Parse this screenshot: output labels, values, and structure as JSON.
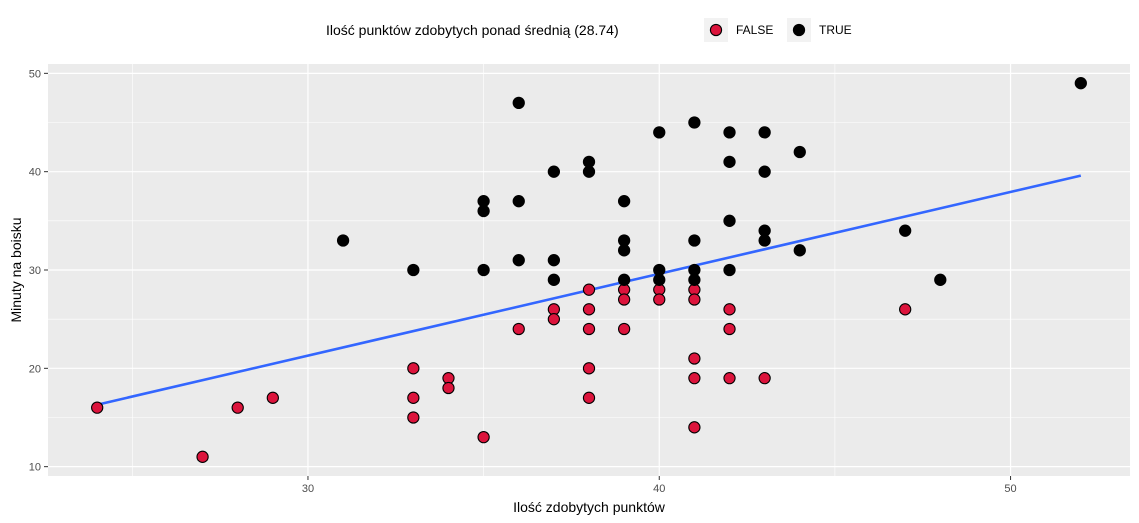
{
  "chart_data": {
    "type": "scatter",
    "xlabel": "Ilość zdobytych punktów",
    "ylabel": "Minuty na boisku",
    "xlim": [
      22.6,
      53.4
    ],
    "ylim": [
      9.05,
      50.95
    ],
    "x_ticks": [
      30,
      40,
      50
    ],
    "y_ticks": [
      10,
      20,
      30,
      40,
      50
    ],
    "grid": true,
    "legend": {
      "title": "Ilość punktów zdobytych ponad średnią (28.74)",
      "position": "top",
      "entries": [
        {
          "label": "FALSE",
          "color": "#dc143c"
        },
        {
          "label": "TRUE",
          "color": "#000000"
        }
      ]
    },
    "series": [
      {
        "name": "FALSE",
        "color": "#dc143c",
        "points": [
          [
            24,
            16
          ],
          [
            27,
            11
          ],
          [
            28,
            16
          ],
          [
            29,
            17
          ],
          [
            33,
            20
          ],
          [
            33,
            17
          ],
          [
            33,
            15
          ],
          [
            34,
            19
          ],
          [
            34,
            18
          ],
          [
            35,
            13
          ],
          [
            36,
            24
          ],
          [
            37,
            26
          ],
          [
            37,
            25
          ],
          [
            38,
            28
          ],
          [
            38,
            26
          ],
          [
            38,
            24
          ],
          [
            38,
            20
          ],
          [
            38,
            17
          ],
          [
            39,
            28
          ],
          [
            39,
            27
          ],
          [
            39,
            24
          ],
          [
            40,
            28
          ],
          [
            40,
            27
          ],
          [
            41,
            28
          ],
          [
            41,
            27
          ],
          [
            41,
            21
          ],
          [
            41,
            19
          ],
          [
            41,
            14
          ],
          [
            42,
            26
          ],
          [
            42,
            24
          ],
          [
            42,
            19
          ],
          [
            43,
            19
          ],
          [
            47,
            26
          ]
        ]
      },
      {
        "name": "TRUE",
        "color": "#000000",
        "points": [
          [
            31,
            33
          ],
          [
            33,
            30
          ],
          [
            35,
            37
          ],
          [
            35,
            36
          ],
          [
            35,
            30
          ],
          [
            36,
            47
          ],
          [
            36,
            37
          ],
          [
            36,
            31
          ],
          [
            37,
            40
          ],
          [
            37,
            31
          ],
          [
            37,
            29
          ],
          [
            38,
            41
          ],
          [
            38,
            40
          ],
          [
            39,
            37
          ],
          [
            39,
            33
          ],
          [
            39,
            32
          ],
          [
            39,
            29
          ],
          [
            40,
            44
          ],
          [
            40,
            30
          ],
          [
            40,
            29
          ],
          [
            41,
            45
          ],
          [
            41,
            33
          ],
          [
            41,
            30
          ],
          [
            41,
            29
          ],
          [
            42,
            44
          ],
          [
            42,
            41
          ],
          [
            42,
            35
          ],
          [
            42,
            30
          ],
          [
            43,
            44
          ],
          [
            43,
            40
          ],
          [
            43,
            34
          ],
          [
            43,
            33
          ],
          [
            44,
            42
          ],
          [
            44,
            32
          ],
          [
            47,
            34
          ],
          [
            48,
            29
          ],
          [
            52,
            49
          ]
        ]
      }
    ],
    "trend_line": {
      "method": "lm",
      "color": "#3366ff",
      "x": [
        24,
        52
      ],
      "y": [
        16.3,
        39.6
      ]
    }
  }
}
